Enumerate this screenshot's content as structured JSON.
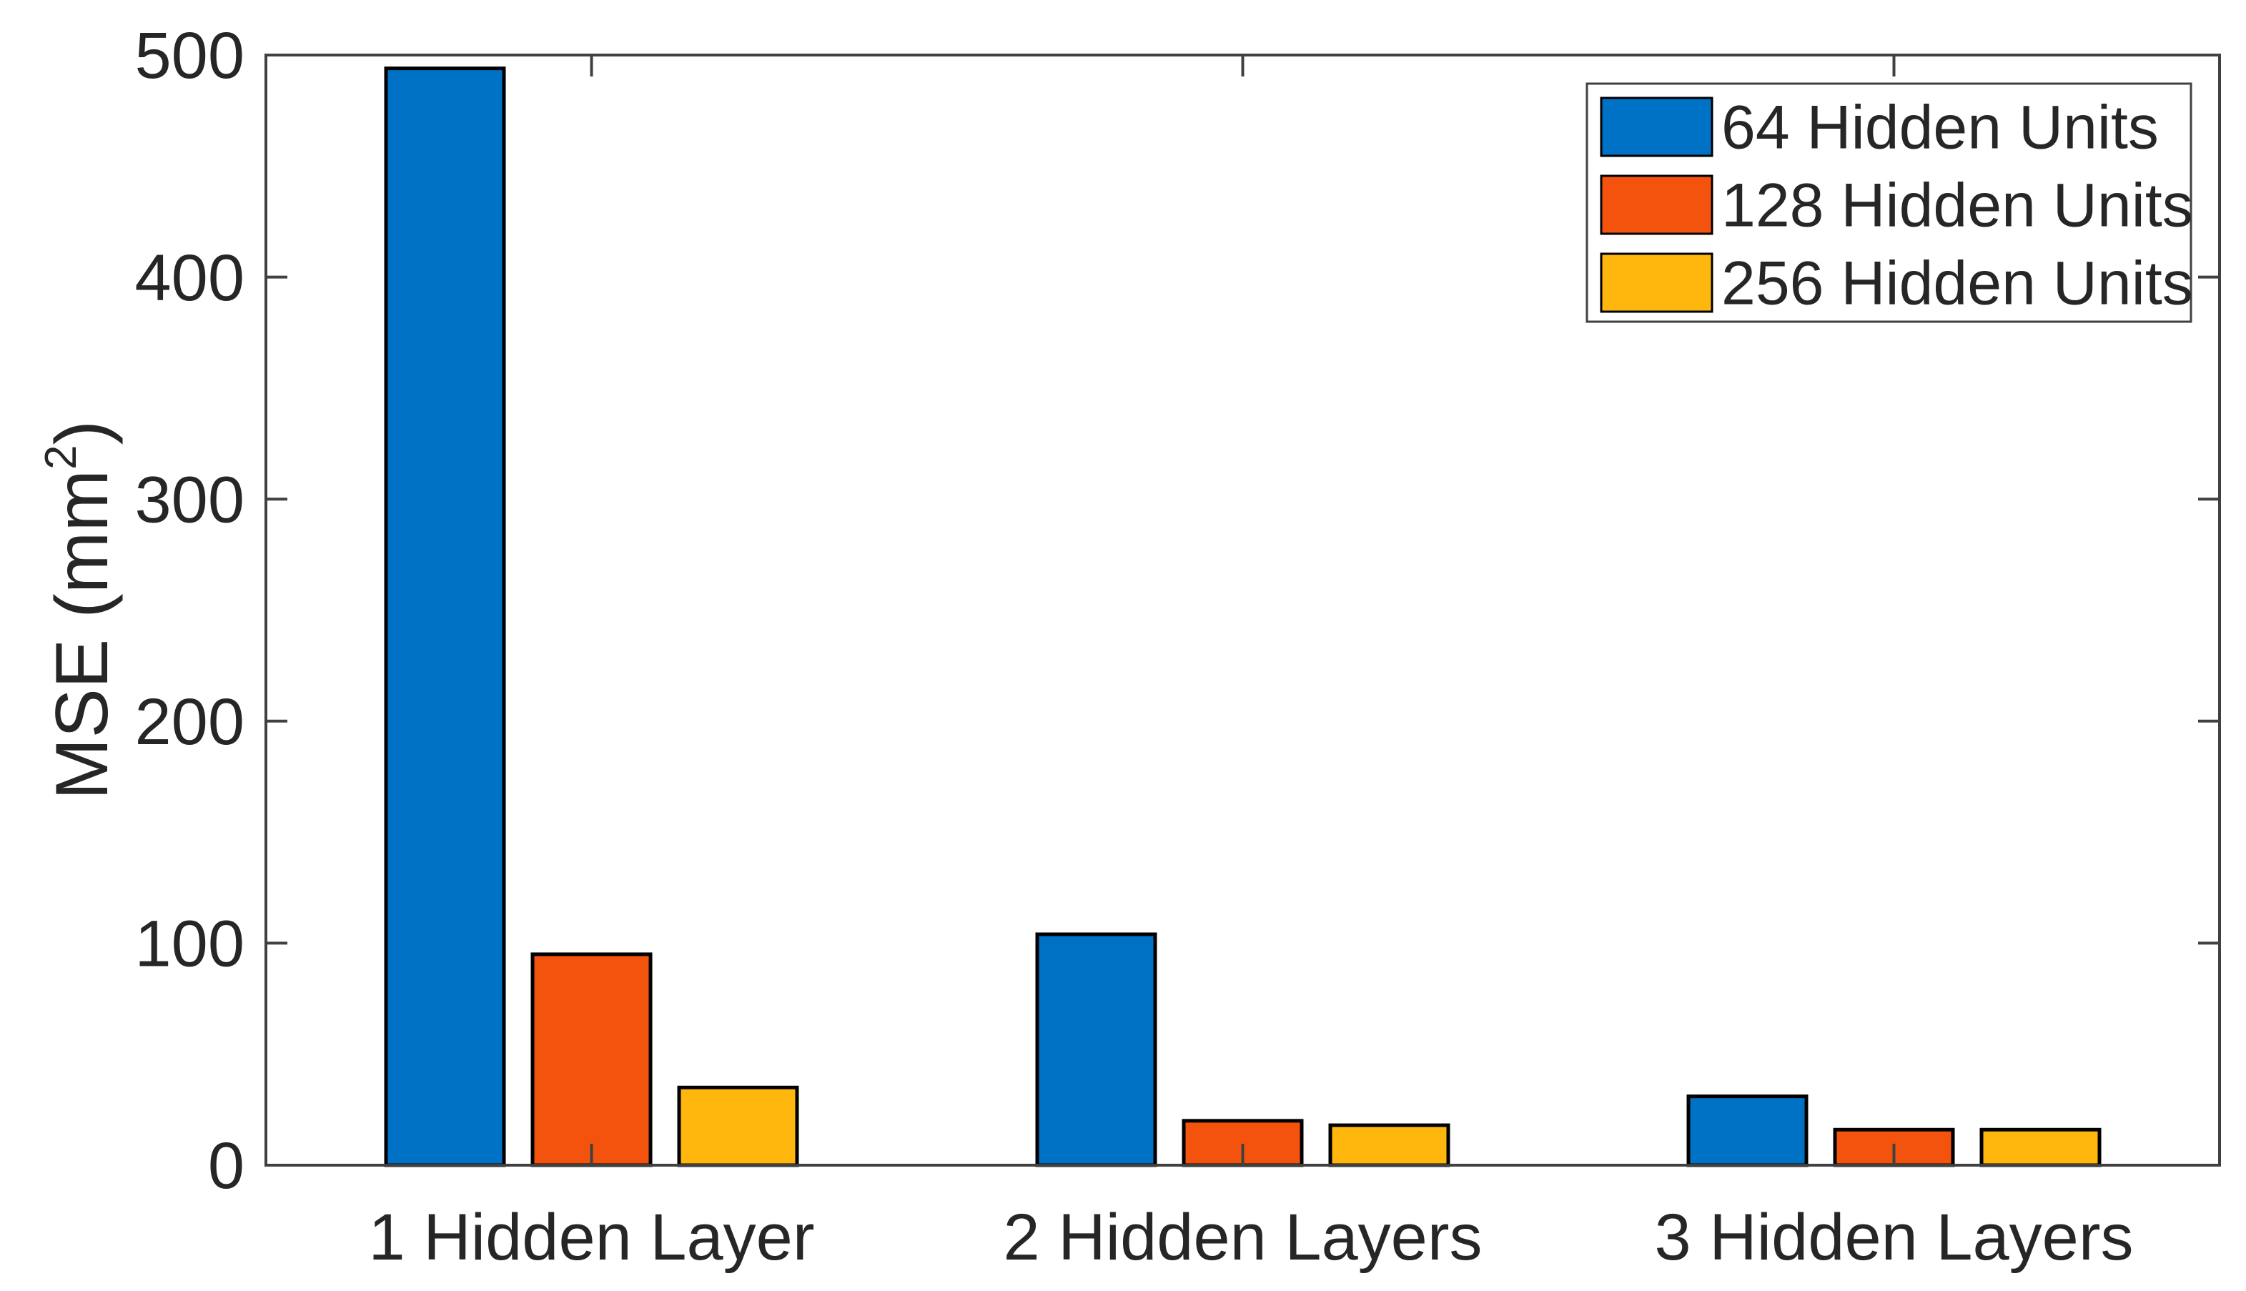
{
  "chart_data": {
    "type": "bar",
    "title": "",
    "categories": [
      "1 Hidden Layer",
      "2 Hidden Layers",
      "3 Hidden Layers"
    ],
    "series": [
      {
        "name": "64 Hidden Units",
        "color": "#0072C6",
        "values": [
          494,
          104,
          31
        ]
      },
      {
        "name": "128 Hidden Units",
        "color": "#F4530D",
        "values": [
          95,
          20,
          16
        ]
      },
      {
        "name": "256 Hidden Units",
        "color": "#FFB60D",
        "values": [
          35,
          18,
          16
        ]
      }
    ],
    "xlabel": "",
    "ylabel": "MSE (mm²)",
    "ylabel_parts": {
      "prefix": "MSE (mm",
      "sup": "2",
      "suffix": ")"
    },
    "ylim": [
      0,
      500
    ],
    "y_ticks": [
      0,
      100,
      200,
      300,
      400,
      500
    ],
    "grid": false,
    "legend_position": "top-right",
    "bar_edge_color": "#000000"
  }
}
